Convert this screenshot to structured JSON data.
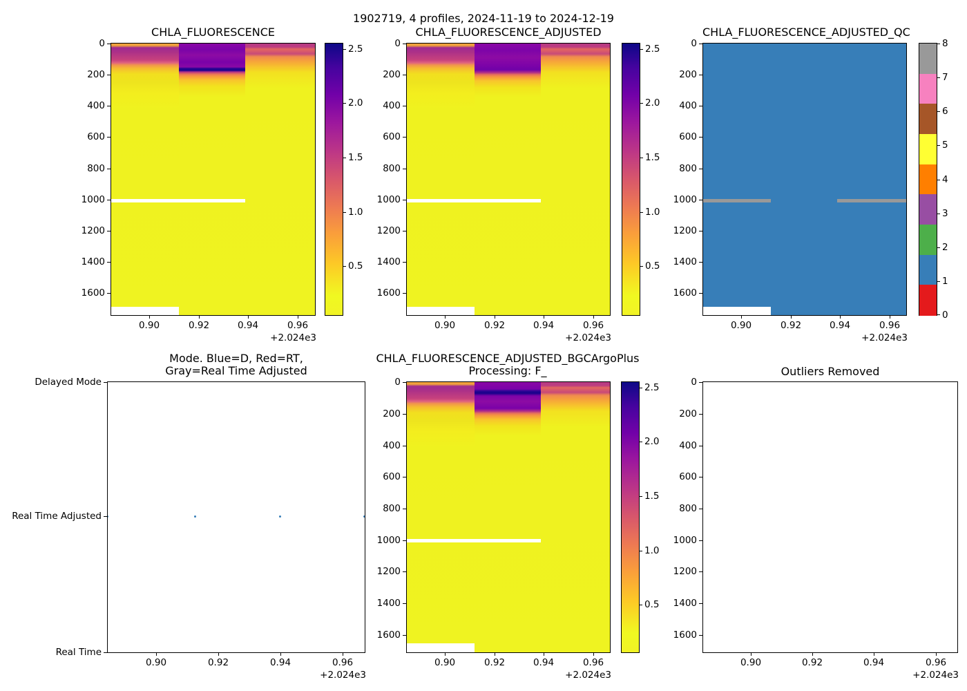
{
  "figure": {
    "suptitle": "1902719, 4 profiles, 2024-11-19 to 2024-12-19"
  },
  "axis": {
    "xticks": [
      "0.90",
      "0.92",
      "0.94",
      "0.96"
    ],
    "x_offset": "+2.024e3",
    "depth_ticks": [
      "0",
      "200",
      "400",
      "600",
      "800",
      "1000",
      "1200",
      "1400",
      "1600"
    ]
  },
  "plots": {
    "p1": {
      "title": "CHLA_FLUORESCENCE"
    },
    "p2": {
      "title": "CHLA_FLUORESCENCE_ADJUSTED"
    },
    "p3": {
      "title": "CHLA_FLUORESCENCE_ADJUSTED_QC"
    },
    "p4": {
      "title_line1": "Mode. Blue=D, Red=RT,",
      "title_line2": "Gray=Real Time Adjusted",
      "yticks": [
        "Delayed Mode",
        "Real Time Adjusted",
        "Real Time"
      ]
    },
    "p5": {
      "title_line1": "CHLA_FLUORESCENCE_ADJUSTED_BGCArgoPlus",
      "title_line2": "Processing: F_"
    },
    "p6": {
      "title": "Outliers Removed"
    }
  },
  "colorbar_value": {
    "ticks": [
      "2.5",
      "2.0",
      "1.5",
      "1.0",
      "0.5"
    ]
  },
  "colorbar_qc": {
    "ticks": [
      "8",
      "7",
      "6",
      "5",
      "4",
      "3",
      "2",
      "1",
      "0"
    ],
    "colors": [
      "#999999",
      "#f781bf",
      "#a65628",
      "#ffff33",
      "#ff7f00",
      "#984ea3",
      "#4daf4a",
      "#377eb8",
      "#e41a1c"
    ]
  },
  "colors": {
    "qc_fill_blue": "#377eb8",
    "qc_missing_gray": "#999999",
    "mode_dot": "#377eb8",
    "plasma_low_yellow": "#f0f921",
    "plasma_high_navy": "#0d0887"
  },
  "chart_data": [
    {
      "type": "heatmap",
      "title": "CHLA_FLUORESCENCE",
      "x_profile_times": [
        2024.885,
        2024.912,
        2024.939,
        2024.967
      ],
      "xticks": [
        2024.9,
        2024.92,
        2024.94,
        2024.96
      ],
      "x_offset_notation": "+2.024e3",
      "yticks": [
        0,
        200,
        400,
        600,
        800,
        1000,
        1200,
        1400,
        1600
      ],
      "ylim": [
        1700,
        0
      ],
      "colormap": "plasma reversed (yellow=low, dark navy=high)",
      "clim": [
        0.05,
        2.55
      ],
      "colorbar_ticks": [
        2.5,
        2.0,
        1.5,
        1.0,
        0.5
      ],
      "columns": [
        {
          "time_span": [
            2024.885,
            2024.912
          ],
          "surface_0_100": 1.5,
          "transition_100_200": 0.4,
          "deep_below_200": 0.1,
          "missing_depth_ranges": [
            [
              990,
              1010
            ],
            [
              1690,
              1700
            ]
          ]
        },
        {
          "time_span": [
            2024.912,
            2024.939
          ],
          "surface_0_100": 2.1,
          "dark_max_line_near_100": 2.5,
          "deep_below_130": 0.1,
          "missing_depth_ranges": [
            [
              990,
              1010
            ]
          ]
        },
        {
          "time_span": [
            2024.939,
            2024.967
          ],
          "surface_0_30": 1.4,
          "band_30_60": 0.9,
          "fade_60_130": 0.4,
          "deep_below_130": 0.1,
          "missing_depth_ranges": []
        }
      ]
    },
    {
      "type": "heatmap",
      "title": "CHLA_FLUORESCENCE_ADJUSTED",
      "x_profile_times": [
        2024.885,
        2024.912,
        2024.939,
        2024.967
      ],
      "yticks": [
        0,
        200,
        400,
        600,
        800,
        1000,
        1200,
        1400,
        1600
      ],
      "ylim": [
        1700,
        0
      ],
      "colormap": "plasma reversed",
      "clim": [
        0.05,
        2.55
      ],
      "colorbar_ticks": [
        2.5,
        2.0,
        1.5,
        1.0,
        0.5
      ],
      "note": "same pattern as CHLA_FLUORESCENCE but middle profile purple band has no dark max line",
      "missing_depth_ranges": {
        "profile_1": [
          [
            990,
            1010
          ],
          [
            1690,
            1700
          ]
        ],
        "profile_2": [
          [
            990,
            1010
          ]
        ]
      }
    },
    {
      "type": "heatmap",
      "title": "CHLA_FLUORESCENCE_ADJUSTED_QC",
      "colormap": "Set1 discrete, 9 classes",
      "clim": [
        0,
        8
      ],
      "colorbar_ticks": [
        0,
        1,
        2,
        3,
        4,
        5,
        6,
        7,
        8
      ],
      "dominant_value": 1,
      "value_8_gray_segments": [
        {
          "depth": 1000,
          "time_span": [
            2024.885,
            2024.912
          ]
        },
        {
          "depth": 1000,
          "time_span": [
            2024.939,
            2024.967
          ]
        }
      ],
      "missing_white": [
        {
          "depth_range": [
            1690,
            1700
          ],
          "time_span": [
            2024.885,
            2024.912
          ]
        }
      ]
    },
    {
      "type": "scatter",
      "title": "Mode. Blue=D, Red=RT, Gray=Real Time Adjusted",
      "y_categories": [
        "Delayed Mode",
        "Real Time Adjusted",
        "Real Time"
      ],
      "points": [
        {
          "x": 2024.885,
          "y": "Real Time Adjusted"
        },
        {
          "x": 2024.912,
          "y": "Real Time Adjusted"
        },
        {
          "x": 2024.939,
          "y": "Real Time Adjusted"
        },
        {
          "x": 2024.967,
          "y": "Real Time Adjusted"
        }
      ]
    },
    {
      "type": "heatmap",
      "title": "CHLA_FLUORESCENCE_ADJUSTED_BGCArgoPlus Processing: F_",
      "colormap": "plasma reversed",
      "clim": [
        0.05,
        2.55
      ],
      "colorbar_ticks": [
        2.5,
        2.0,
        1.5,
        1.0,
        0.5
      ],
      "note": "same pattern as adjusted; middle profile has dark navy max line near 60 dbar",
      "missing_depth_ranges": {
        "profile_1": [
          [
            990,
            1010
          ],
          [
            1690,
            1700
          ]
        ],
        "profile_2": [
          [
            990,
            1010
          ]
        ]
      }
    },
    {
      "type": "scatter",
      "title": "Outliers Removed",
      "yticks": [
        0,
        200,
        400,
        600,
        800,
        1000,
        1200,
        1400,
        1600
      ],
      "xticks": [
        2024.9,
        2024.92,
        2024.94,
        2024.96
      ],
      "points": []
    }
  ]
}
